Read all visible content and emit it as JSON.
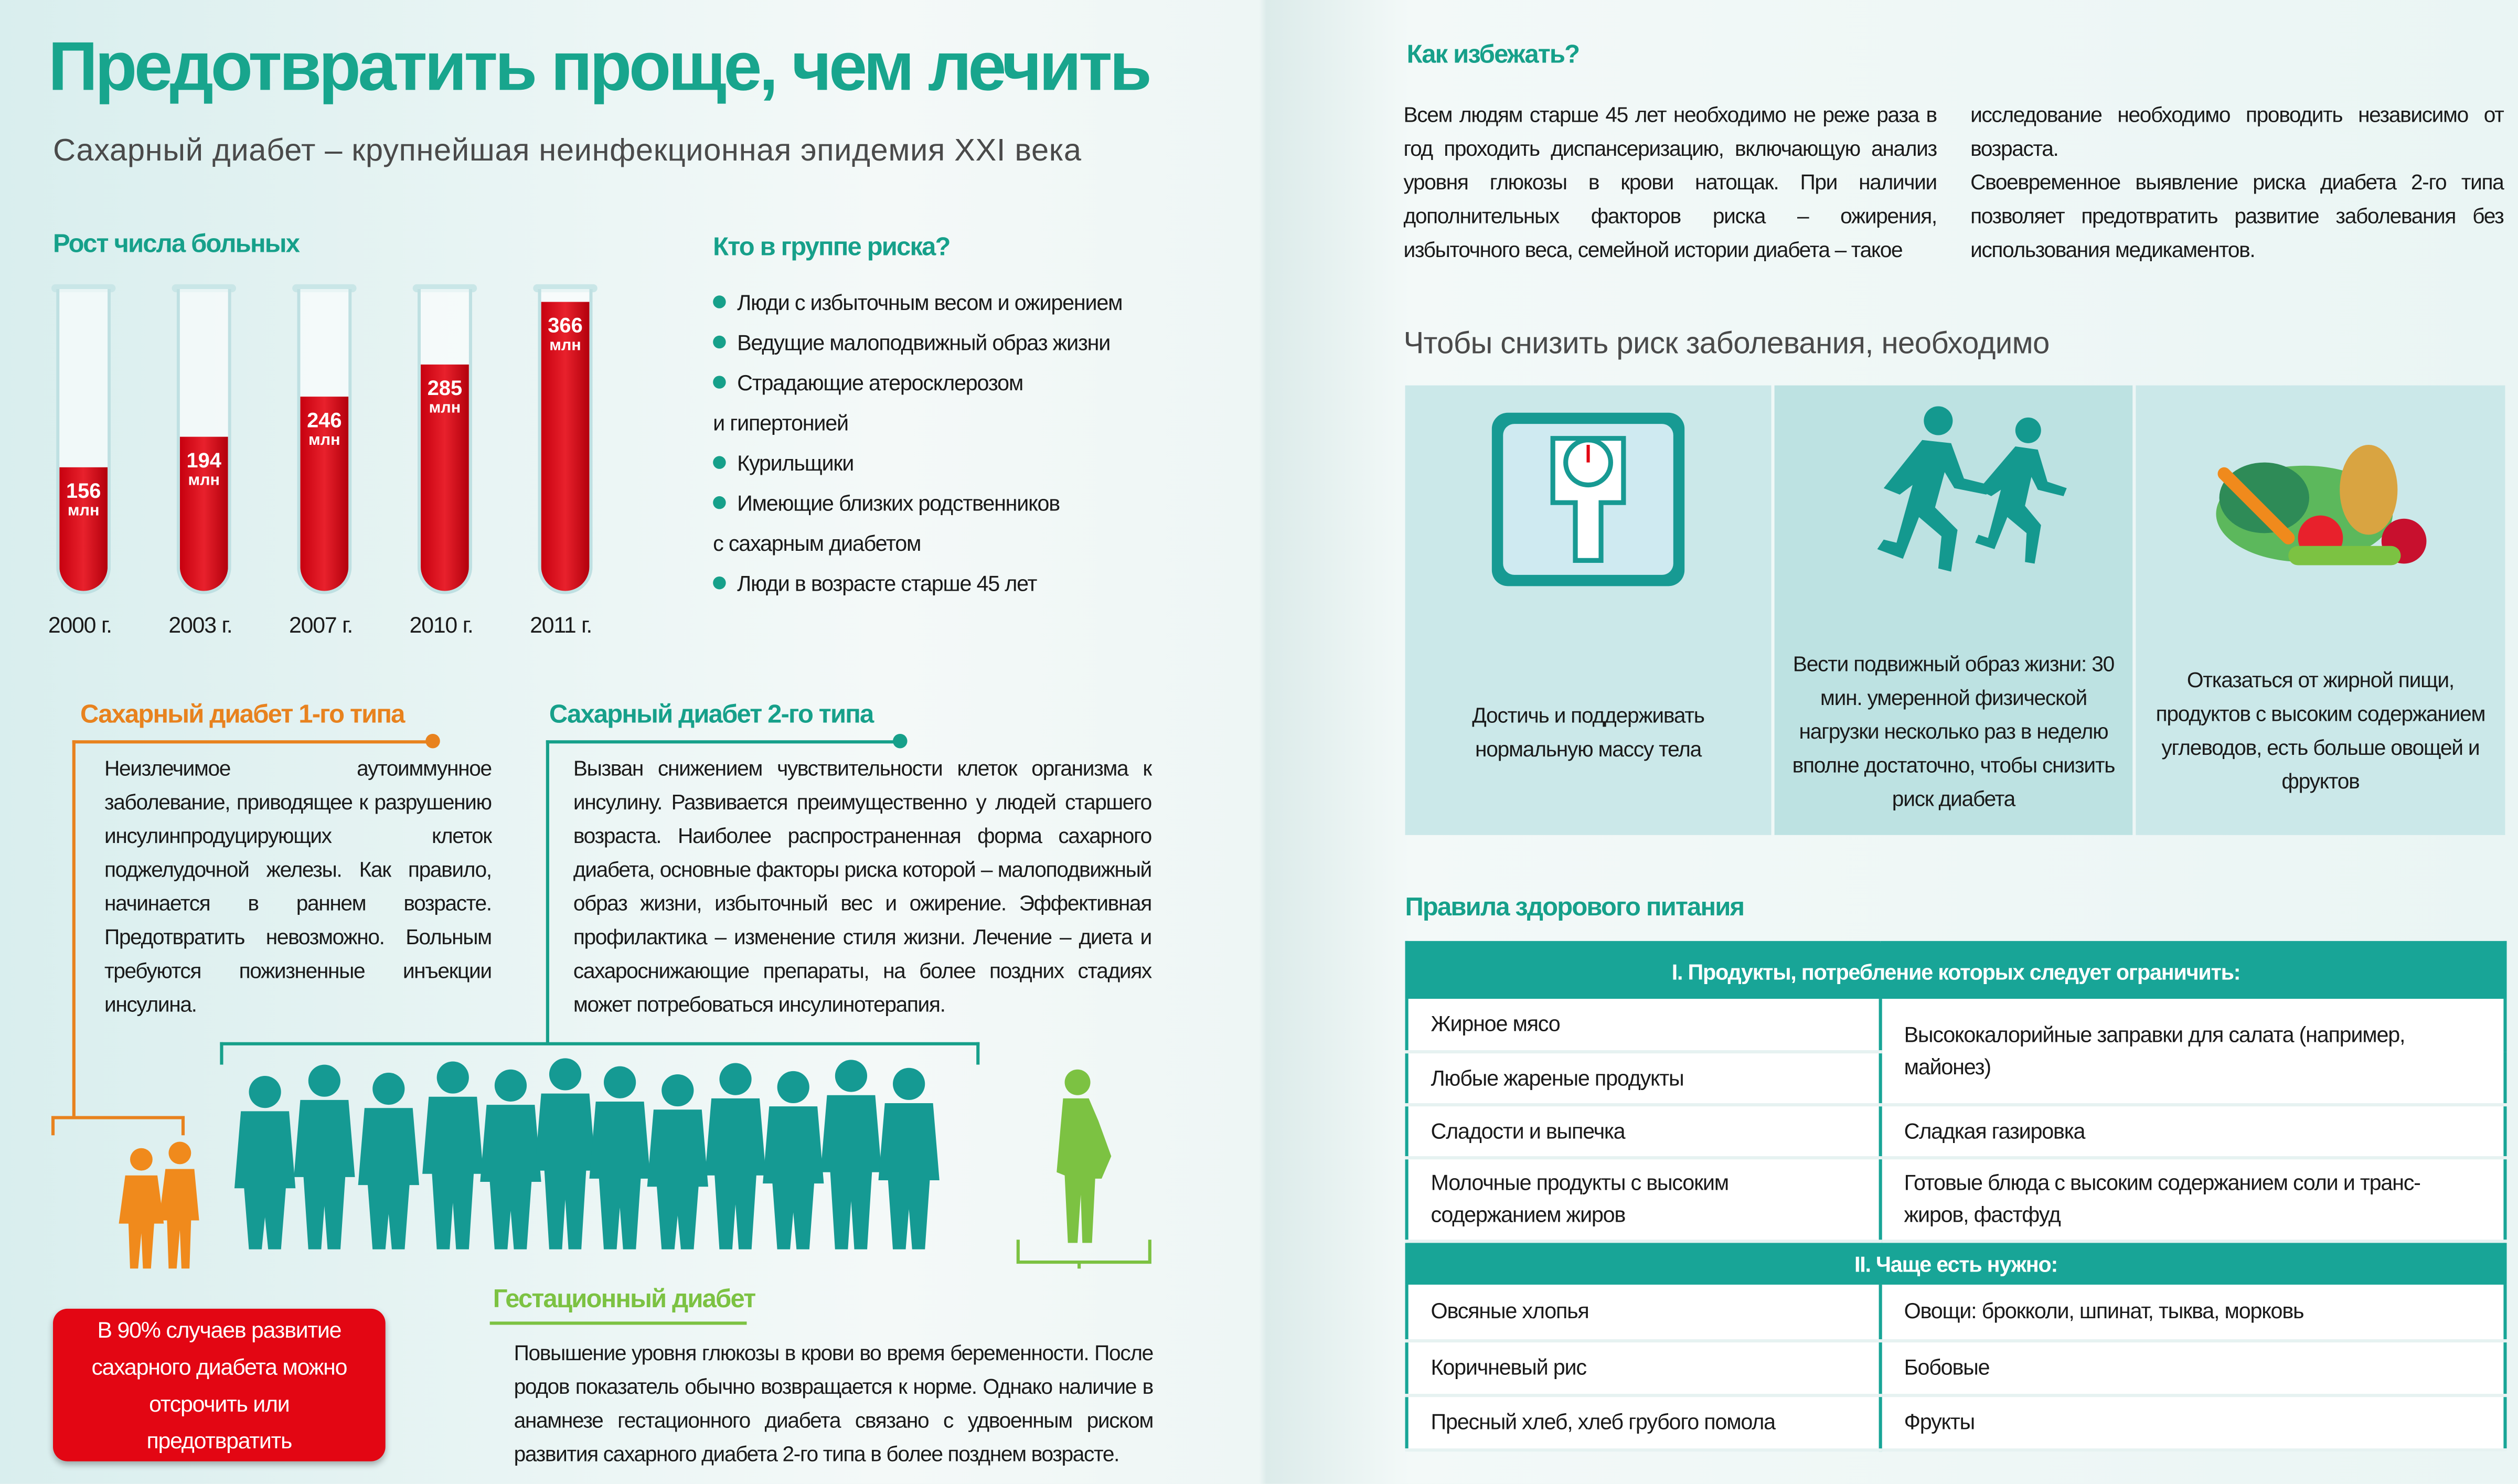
{
  "left_page": {
    "title": "Предотвратить проще, чем лечить",
    "subtitle": "Сахарный диабет – крупнейшая неинфекционная эпидемия XXI века",
    "growth": {
      "heading": "Рост числа больных",
      "unit": "млн",
      "tubes": [
        {
          "year": "2000 г.",
          "value": "156"
        },
        {
          "year": "2003 г.",
          "value": "194"
        },
        {
          "year": "2007 г.",
          "value": "246"
        },
        {
          "year": "2010 г.",
          "value": "285"
        },
        {
          "year": "2011 г.",
          "value": "366"
        }
      ]
    },
    "risk": {
      "heading": "Кто в группе риска?",
      "items": [
        "Люди с избыточным весом и ожирением",
        "Ведущие малоподвижный образ жизни",
        "Страдающие атеросклерозом",
        "и гипертонией",
        "Курильщики",
        "Имеющие близких родственников",
        "с сахарным диабетом",
        "Люди в возрасте старше 45 лет"
      ],
      "bulleted": [
        true,
        true,
        true,
        false,
        true,
        true,
        false,
        true
      ]
    },
    "type1": {
      "heading": "Сахарный диабет 1-го типа",
      "text": "Неизлечимое аутоиммунное заболевание, приводящее к разрушению инсулинпродуцирующих клеток поджелудочной железы. Как правило, начинается в раннем возрасте. Предотвратить невозможно. Больным требуются пожизненные инъекции инсулина."
    },
    "type2": {
      "heading": "Сахарный диабет 2-го типа",
      "text": "Вызван снижением чувствительности клеток организма к инсулину. Развивается преимущественно у людей старшего возраста. Наиболее распространенная форма сахарного диабета, основные факторы риска которой – малоподвижный образ жизни, избыточный вес и ожирение. Эффективная профилактика – изменение стиля жизни. Лечение – диета и сахароснижающие препараты, на более поздних стадиях может потребоваться инсулинотерапия."
    },
    "gestational": {
      "heading": "Гестационный диабет",
      "text": "Повышение уровня глюкозы в крови во время беременности. После родов показатель обычно возвращается к норме. Однако наличие в анамнезе гестационного диабета связано с удвоенным риском развития сахарного диабета 2-го типа в более позднем возрасте."
    },
    "callout": "В 90% случаев развитие сахарного диабета можно отсрочить или предотвратить"
  },
  "right_page": {
    "avoid": {
      "heading": "Как избежать?",
      "col1": "Всем людям старше 45 лет необходимо не реже раза в год проходить диспансеризацию, включающую анализ уровня глюкозы в крови натощак. При наличии дополнительных факторов риска – ожирения, избыточного веса, семейной истории диабета – такое",
      "col2a": "исследование необходимо проводить независимо от возраста.",
      "col2b": "Своевременное выявление риска диабета 2-го типа позволяет предотвратить развитие заболевания без использования медикаментов."
    },
    "reduce": {
      "heading": "Чтобы снизить риск заболевания, необходимо",
      "panels": [
        {
          "icon": "scale-icon",
          "text": "Достичь и поддерживать нормальную массу тела"
        },
        {
          "icon": "runners-icon",
          "text": "Вести подвижный образ жизни: 30 мин. умеренной физической нагрузки несколько раз в неделю вполне достаточно, чтобы снизить риск диабета"
        },
        {
          "icon": "vegetables-icon",
          "text": "Отказаться от жирной пищи, продуктов с высоким содержанием углеводов, есть больше овощей и фруктов"
        }
      ]
    },
    "nutrition": {
      "heading": "Правила здорового питания",
      "section1": {
        "title": "I. Продукты, потребление которых следует ограничить:",
        "left": [
          "Жирное мясо",
          "Любые жареные продукты",
          "Сладости и выпечка",
          "Молочные продукты с высоким содержанием жиров"
        ],
        "right": [
          "Высококалорийные заправки для салата (например, майонез)",
          "Сладкая газировка",
          "Готовые блюда с высоким содержанием соли и транс-жиров, фастфуд"
        ]
      },
      "section2": {
        "title": "II. Чаще есть нужно:",
        "left": [
          "Овсяные хлопья",
          "Коричневый рис",
          "Пресный хлеб, хлеб грубого помола"
        ],
        "right": [
          "Овощи: брокколи, шпинат, тыква, морковь",
          "Бобовые",
          "Фрукты"
        ]
      }
    }
  },
  "colors": {
    "teal": "#16a08a",
    "orange": "#e8821e",
    "red": "#e30613",
    "green": "#7cc242",
    "table_teal": "#18a597"
  }
}
